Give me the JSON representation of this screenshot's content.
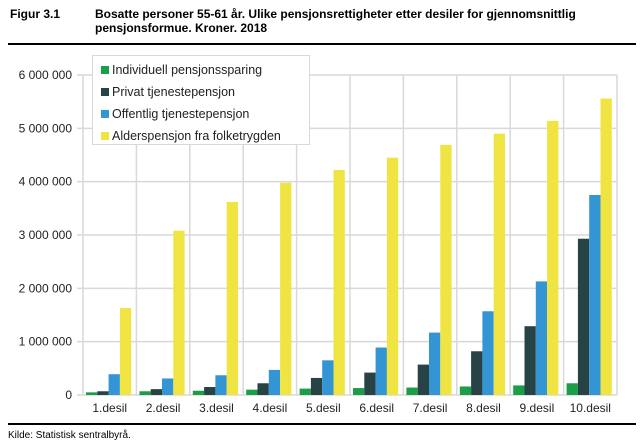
{
  "figure": {
    "label": "Figur 3.1",
    "title": "Bosatte personer 55-61 år. Ulike pensjonsrettigheter etter desiler for gjennomsnittlig pensjonsformue. Kroner. 2018",
    "source": "Kilde: Statistisk sentralbyrå."
  },
  "colors": {
    "gridline": "#d9d9d9",
    "axis": "#d9d9d9"
  },
  "chart_data": {
    "type": "bar",
    "title": "Bosatte personer 55-61 år. Ulike pensjonsrettigheter etter desiler for gjennomsnittlig pensjonsformue. Kroner. 2018",
    "xlabel": "",
    "ylabel": "",
    "ylim": [
      0,
      6000000
    ],
    "yticks": [
      0,
      1000000,
      2000000,
      3000000,
      4000000,
      5000000,
      6000000
    ],
    "ytick_labels": [
      "0",
      "1 000 000",
      "2 000 000",
      "3 000 000",
      "4 000 000",
      "5 000 000",
      "6 000 000"
    ],
    "grid": true,
    "legend_position": "top-left",
    "categories": [
      "1.desil",
      "2.desil",
      "3.desil",
      "4.desil",
      "5.desil",
      "6.desil",
      "7.desil",
      "8.desil",
      "9.desil",
      "10.desil"
    ],
    "series": [
      {
        "name": "Individuell pensjonssparing",
        "color": "#1a9e48",
        "values": [
          50000,
          70000,
          80000,
          100000,
          120000,
          130000,
          140000,
          160000,
          180000,
          220000
        ]
      },
      {
        "name": "Privat tjenestepensjon",
        "color": "#274346",
        "values": [
          70000,
          110000,
          150000,
          220000,
          320000,
          420000,
          570000,
          820000,
          1290000,
          2930000
        ]
      },
      {
        "name": "Offentlig tjenestepensjon",
        "color": "#3395d4",
        "values": [
          390000,
          310000,
          370000,
          470000,
          650000,
          890000,
          1170000,
          1570000,
          2130000,
          3750000
        ]
      },
      {
        "name": "Alderspensjon fra folketrygden",
        "color": "#f0e442",
        "values": [
          1630000,
          3080000,
          3620000,
          3980000,
          4220000,
          4450000,
          4690000,
          4900000,
          5140000,
          5560000
        ]
      }
    ]
  }
}
